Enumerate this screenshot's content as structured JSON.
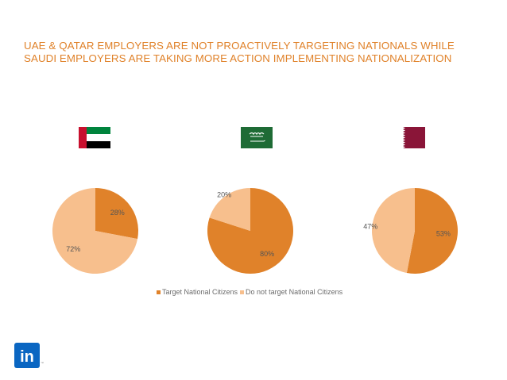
{
  "title": "UAE & QATAR EMPLOYERS ARE NOT PROACTIVELY TARGETING NATIONALS WHILE SAUDI EMPLOYERS ARE TAKING MORE ACTION IMPLEMENTING NATIONALIZATION",
  "colors": {
    "title": "#e0822a",
    "target": "#e0822a",
    "not_target": "#f7bf8d"
  },
  "flags": [
    {
      "icon": "uae-flag-icon"
    },
    {
      "icon": "saudi-flag-icon"
    },
    {
      "icon": "qatar-flag-icon"
    }
  ],
  "legend": {
    "target": "Target National Citizens",
    "not_target": "Do not target National Citizens"
  },
  "logo": {
    "text": "in",
    "icon": "linkedin-logo-icon"
  },
  "chart_data": [
    {
      "type": "pie",
      "categories": [
        "Target National Citizens",
        "Do not target National Citizens"
      ],
      "values": [
        28,
        72
      ],
      "labels": [
        "28%",
        "72%"
      ]
    },
    {
      "type": "pie",
      "categories": [
        "Target National Citizens",
        "Do not target National Citizens"
      ],
      "values": [
        80,
        20
      ],
      "labels": [
        "80%",
        "20%"
      ]
    },
    {
      "type": "pie",
      "categories": [
        "Target National Citizens",
        "Do not target National Citizens"
      ],
      "values": [
        53,
        47
      ],
      "labels": [
        "53%",
        "47%"
      ]
    }
  ]
}
